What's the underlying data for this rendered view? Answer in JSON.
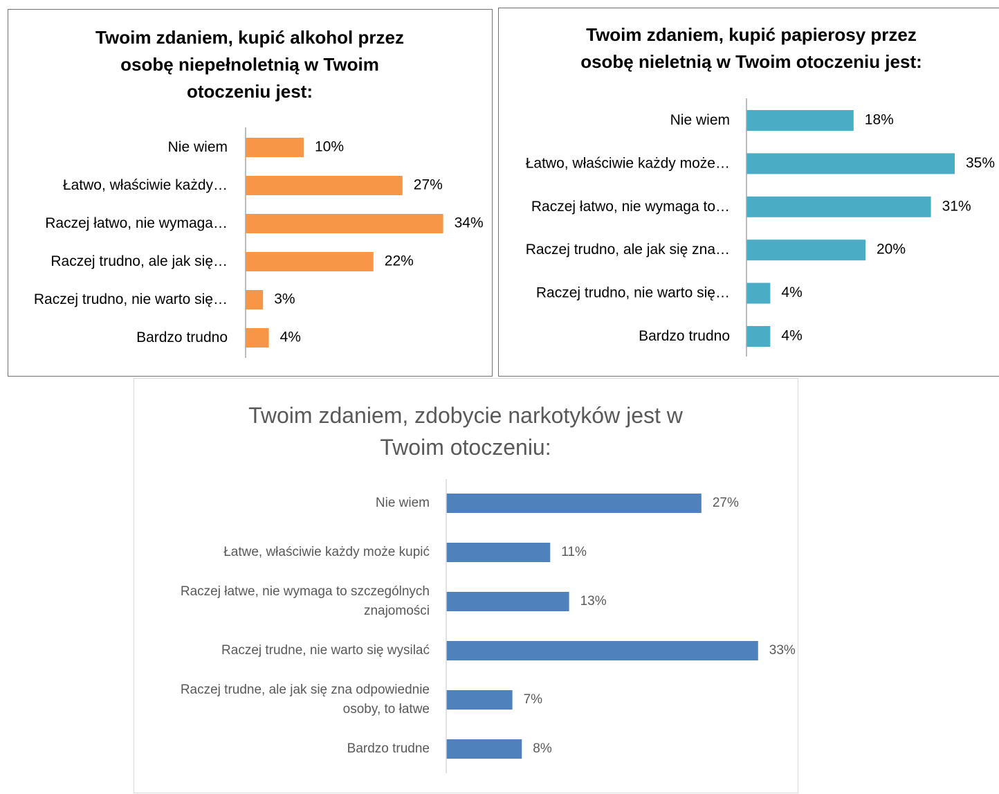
{
  "chart_data": [
    {
      "type": "bar",
      "orientation": "horizontal",
      "title": "Twoim zdaniem, kupić alkohol przez osobę niepełnoletnią w Twoim otoczeniu jest:",
      "title_lines": [
        "Twoim zdaniem, kupić alkohol przez",
        "osobę niepełnoletnią w Twoim",
        "otoczeniu jest:"
      ],
      "categories": [
        [
          "Nie wiem"
        ],
        [
          "Łatwo, właściwie każdy…"
        ],
        [
          "Raczej łatwo, nie wymaga…"
        ],
        [
          "Raczej trudno, ale jak się…"
        ],
        [
          "Raczej trudno, nie warto się…"
        ],
        [
          "Bardzo trudno"
        ]
      ],
      "values": [
        10,
        27,
        34,
        22,
        3,
        4
      ],
      "value_labels": [
        "10%",
        "27%",
        "34%",
        "22%",
        "3%",
        "4%"
      ],
      "unit": "%",
      "color": "#f79646",
      "grid": false,
      "legend": "none"
    },
    {
      "type": "bar",
      "orientation": "horizontal",
      "title": "Twoim zdaniem, kupić papierosy przez osobę nieletnią w Twoim otoczeniu jest:",
      "title_lines": [
        "Twoim zdaniem, kupić papierosy przez",
        "osobę nieletnią w Twoim otoczeniu jest:"
      ],
      "categories": [
        [
          "Nie wiem"
        ],
        [
          "Łatwo, właściwie każdy może…"
        ],
        [
          "Raczej łatwo, nie wymaga to…"
        ],
        [
          "Raczej trudno, ale jak się zna…"
        ],
        [
          "Raczej trudno, nie warto się…"
        ],
        [
          "Bardzo trudno"
        ]
      ],
      "values": [
        18,
        35,
        31,
        20,
        4,
        4
      ],
      "value_labels": [
        "18%",
        "35%",
        "31%",
        "20%",
        "4%",
        "4%"
      ],
      "unit": "%",
      "color": "#4bacc6",
      "grid": false,
      "legend": "none"
    },
    {
      "type": "bar",
      "orientation": "horizontal",
      "title": "Twoim zdaniem, zdobycie narkotyków jest w Twoim otoczeniu:",
      "title_lines": [
        "Twoim zdaniem, zdobycie narkotyków jest w",
        "Twoim otoczeniu:"
      ],
      "categories": [
        [
          "Nie wiem"
        ],
        [
          "Łatwe, właściwie każdy może kupić"
        ],
        [
          "Raczej łatwe, nie wymaga to szczególnych",
          "znajomości"
        ],
        [
          "Raczej trudne, nie warto się wysilać "
        ],
        [
          "Raczej trudne, ale jak się zna odpowiednie",
          "osoby, to łatwe"
        ],
        [
          "Bardzo trudne"
        ]
      ],
      "values": [
        27,
        11,
        13,
        33,
        7,
        8
      ],
      "value_labels": [
        "27%",
        "11%",
        "13%",
        "33%",
        "7%",
        "8%"
      ],
      "unit": "%",
      "color": "#4f81bd",
      "grid": false,
      "legend": "none"
    }
  ]
}
